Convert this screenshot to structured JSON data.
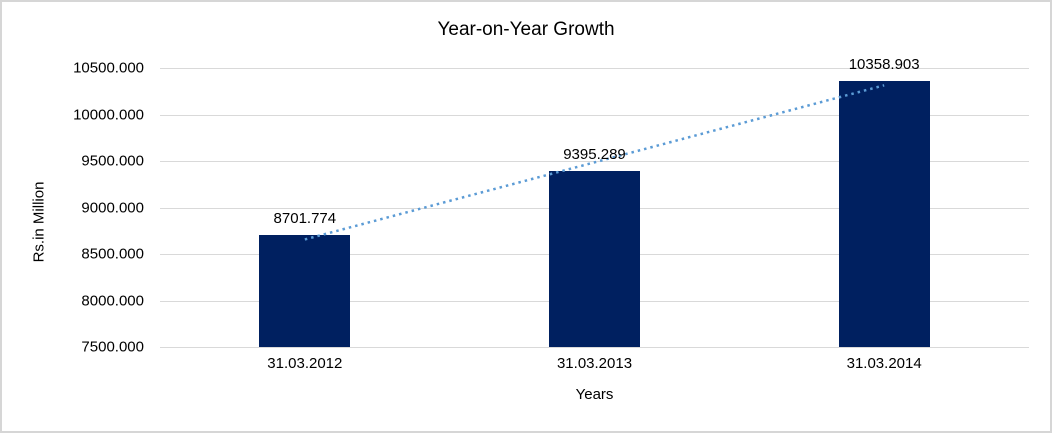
{
  "chart_data": {
    "type": "bar",
    "title": "Year-on-Year Growth",
    "xlabel": "Years",
    "ylabel": "Rs.in Million",
    "categories": [
      "31.03.2012",
      "31.03.2013",
      "31.03.2014"
    ],
    "values": [
      8701.774,
      9395.289,
      10358.903
    ],
    "data_labels": [
      "8701.774",
      "9395.289",
      "10358.903"
    ],
    "ylim": [
      7500,
      10500
    ],
    "ytick_step": 500,
    "ytick_labels": [
      "7500.000",
      "8000.000",
      "8500.000",
      "9000.000",
      "9500.000",
      "10000.000",
      "10500.000"
    ],
    "grid": true,
    "legend_position": "none",
    "bar_color": "#002060",
    "gridline_color": "#d9d9d9",
    "trendline": {
      "type": "linear",
      "style": "dotted",
      "color": "#5b9bd5",
      "fitted_values": [
        8656.76,
        10313.88
      ]
    }
  }
}
